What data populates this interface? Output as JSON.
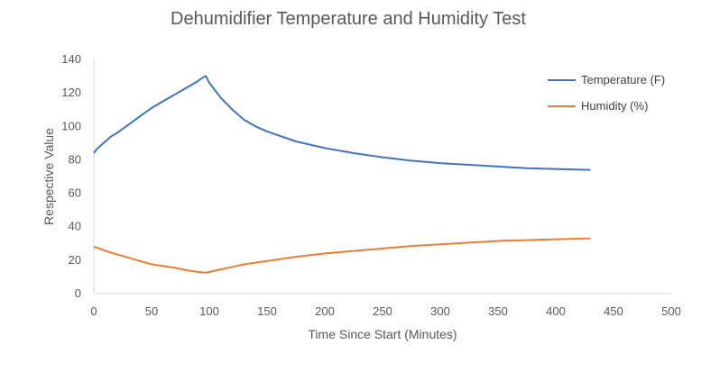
{
  "chart_data": {
    "type": "line",
    "title": "Dehumidifier Temperature and Humidity Test",
    "xlabel": "Time Since Start (Minutes)",
    "ylabel": "Respective Value",
    "xlim": [
      0,
      500
    ],
    "ylim": [
      0,
      140
    ],
    "xticks": [
      0,
      50,
      100,
      150,
      200,
      250,
      300,
      350,
      400,
      450,
      500
    ],
    "yticks": [
      0,
      20,
      40,
      60,
      80,
      100,
      120,
      140
    ],
    "grid": false,
    "legend_position": "right",
    "series": [
      {
        "name": "Temperature (F)",
        "color": "#4472C4",
        "x": [
          0,
          2,
          5,
          10,
          15,
          20,
          30,
          40,
          50,
          60,
          70,
          80,
          90,
          95,
          97,
          100,
          110,
          120,
          130,
          140,
          150,
          175,
          200,
          225,
          250,
          275,
          300,
          325,
          350,
          375,
          400,
          430
        ],
        "y": [
          84,
          86,
          88,
          91,
          94,
          96,
          101,
          106,
          111,
          115,
          119,
          123,
          127,
          129.5,
          130,
          126,
          117,
          110,
          104,
          100,
          97,
          91,
          87,
          84,
          81.5,
          79.5,
          78,
          77,
          76,
          75,
          74.5,
          74
        ]
      },
      {
        "name": "Humidity (%)",
        "color": "#ED7D31",
        "x": [
          0,
          5,
          10,
          20,
          30,
          40,
          50,
          60,
          70,
          80,
          90,
          97,
          100,
          110,
          120,
          130,
          140,
          150,
          175,
          200,
          225,
          250,
          275,
          300,
          325,
          350,
          375,
          400,
          430
        ],
        "y": [
          28,
          27,
          25.5,
          23.5,
          21.5,
          19.5,
          17.5,
          16.5,
          15.5,
          14,
          13,
          12.5,
          13,
          14.5,
          16,
          17.5,
          18.5,
          19.5,
          22,
          24,
          25.5,
          27,
          28.5,
          29.5,
          30.5,
          31.5,
          32,
          32.5,
          33
        ]
      }
    ]
  }
}
